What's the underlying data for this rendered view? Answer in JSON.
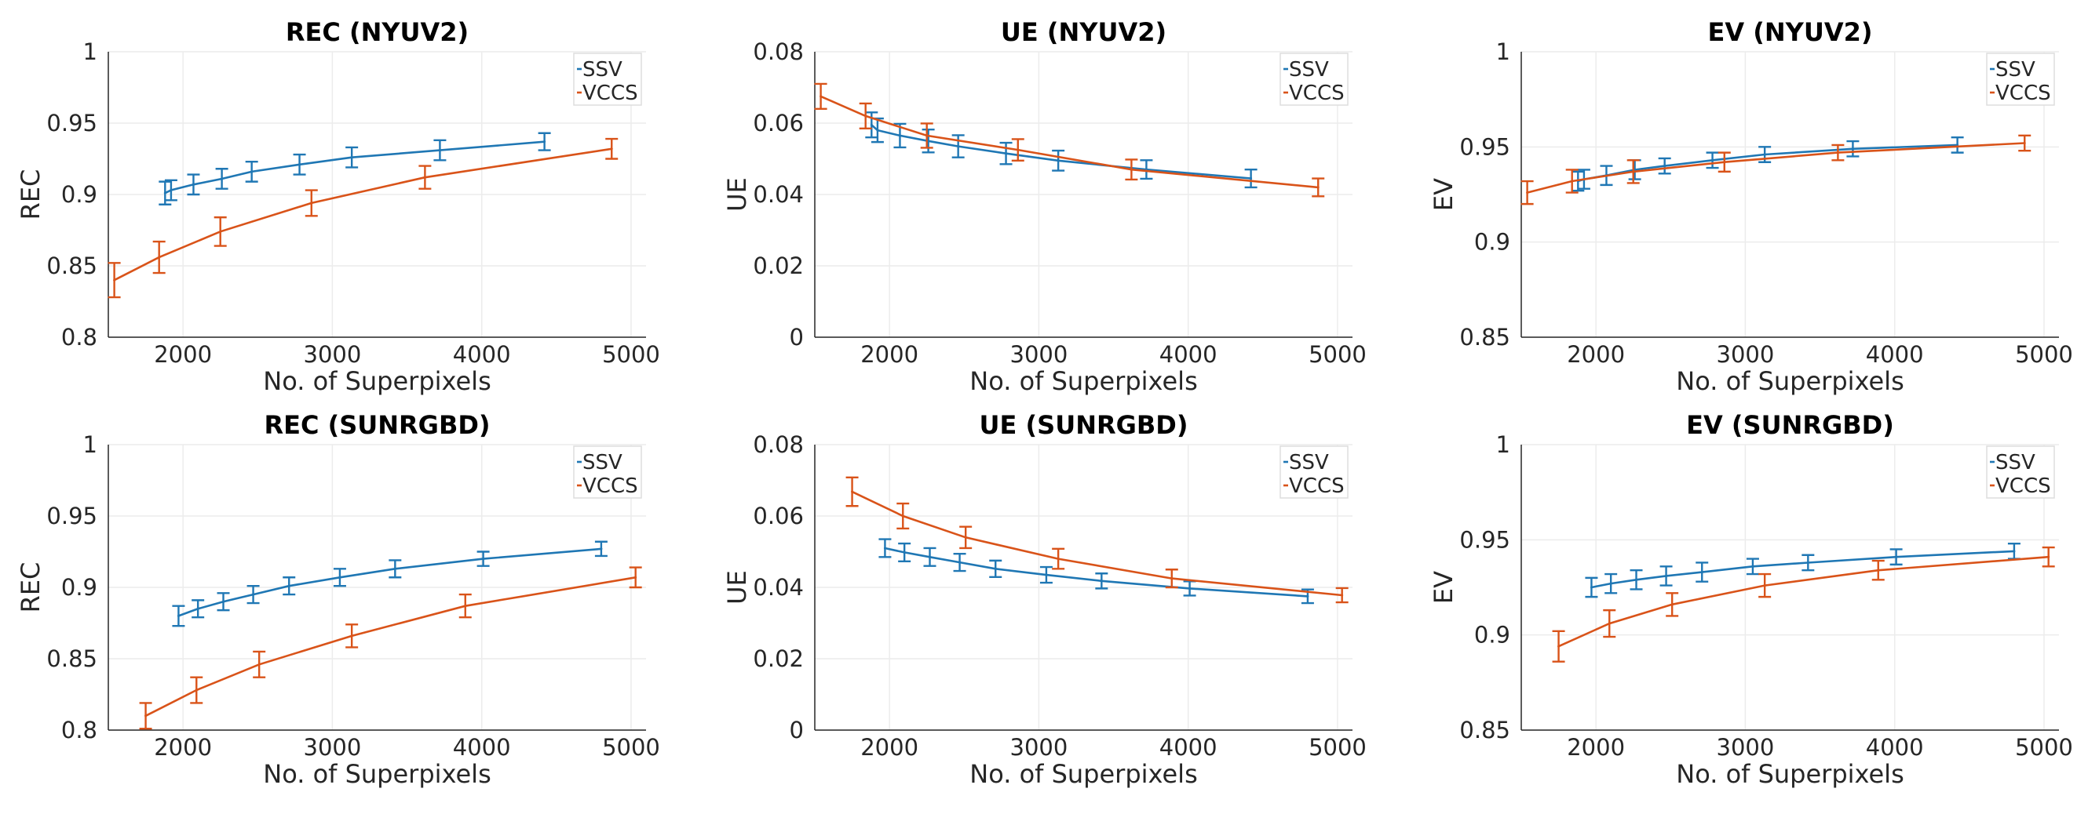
{
  "colors": {
    "SSV": "#1f77b4",
    "VCCS": "#d95319"
  },
  "chart_data": [
    {
      "type": "line",
      "title": "REC (NYUV2)",
      "xlabel": "No. of Superpixels",
      "ylabel": "REC",
      "xlim": [
        1500,
        5100
      ],
      "ylim": [
        0.8,
        1
      ],
      "xticks": [
        2000,
        3000,
        4000,
        5000
      ],
      "yticks": [
        0.8,
        0.85,
        0.9,
        0.95,
        1
      ],
      "ytick_labels": [
        "0.8",
        "0.85",
        "0.9",
        "0.95",
        "1"
      ],
      "legend": "top-right",
      "grid": true,
      "series": [
        {
          "name": "SSV",
          "color": "#1f77b4",
          "x": [
            1880,
            1920,
            2070,
            2260,
            2460,
            2780,
            3130,
            3720,
            4420
          ],
          "y": [
            0.901,
            0.903,
            0.907,
            0.911,
            0.916,
            0.921,
            0.926,
            0.931,
            0.937
          ],
          "err": [
            0.008,
            0.007,
            0.007,
            0.007,
            0.007,
            0.007,
            0.007,
            0.007,
            0.006
          ]
        },
        {
          "name": "VCCS",
          "color": "#d95319",
          "x": [
            1540,
            1840,
            2250,
            2860,
            3620,
            4870
          ],
          "y": [
            0.84,
            0.856,
            0.874,
            0.894,
            0.912,
            0.932
          ],
          "err": [
            0.012,
            0.011,
            0.01,
            0.009,
            0.008,
            0.007
          ]
        }
      ]
    },
    {
      "type": "line",
      "title": "UE (NYUV2)",
      "xlabel": "No. of Superpixels",
      "ylabel": "UE",
      "xlim": [
        1500,
        5100
      ],
      "ylim": [
        0,
        0.08
      ],
      "xticks": [
        2000,
        3000,
        4000,
        5000
      ],
      "yticks": [
        0,
        0.02,
        0.04,
        0.06,
        0.08
      ],
      "ytick_labels": [
        "0",
        "0.02",
        "0.04",
        "0.06",
        "0.08"
      ],
      "legend": "top-right",
      "grid": true,
      "series": [
        {
          "name": "SSV",
          "color": "#1f77b4",
          "x": [
            1880,
            1920,
            2070,
            2260,
            2460,
            2780,
            3130,
            3720,
            4420
          ],
          "y": [
            0.0595,
            0.058,
            0.0565,
            0.055,
            0.0535,
            0.0515,
            0.0495,
            0.047,
            0.0445
          ],
          "err": [
            0.0035,
            0.0033,
            0.0033,
            0.0032,
            0.0031,
            0.003,
            0.0028,
            0.0026,
            0.0025
          ]
        },
        {
          "name": "VCCS",
          "color": "#d95319",
          "x": [
            1540,
            1840,
            2250,
            2860,
            3620,
            4870
          ],
          "y": [
            0.0675,
            0.062,
            0.0565,
            0.0525,
            0.047,
            0.042
          ],
          "err": [
            0.0035,
            0.0035,
            0.0034,
            0.003,
            0.0028,
            0.0025
          ]
        }
      ]
    },
    {
      "type": "line",
      "title": "EV (NYUV2)",
      "xlabel": "No. of Superpixels",
      "ylabel": "EV",
      "xlim": [
        1500,
        5100
      ],
      "ylim": [
        0.85,
        1
      ],
      "xticks": [
        2000,
        3000,
        4000,
        5000
      ],
      "yticks": [
        0.85,
        0.9,
        0.95,
        1
      ],
      "ytick_labels": [
        "0.85",
        "0.9",
        "0.95",
        "1"
      ],
      "legend": "top-right",
      "grid": true,
      "series": [
        {
          "name": "SSV",
          "color": "#1f77b4",
          "x": [
            1880,
            1920,
            2070,
            2260,
            2460,
            2780,
            3130,
            3720,
            4420
          ],
          "y": [
            0.932,
            0.933,
            0.935,
            0.938,
            0.94,
            0.943,
            0.946,
            0.949,
            0.951
          ],
          "err": [
            0.005,
            0.005,
            0.005,
            0.005,
            0.004,
            0.004,
            0.004,
            0.004,
            0.004
          ]
        },
        {
          "name": "VCCS",
          "color": "#d95319",
          "x": [
            1540,
            1840,
            2250,
            2860,
            3620,
            4870
          ],
          "y": [
            0.926,
            0.932,
            0.937,
            0.942,
            0.947,
            0.952
          ],
          "err": [
            0.006,
            0.006,
            0.006,
            0.005,
            0.004,
            0.004
          ]
        }
      ]
    },
    {
      "type": "line",
      "title": "REC (SUNRGBD)",
      "xlabel": "No. of Superpixels",
      "ylabel": "REC",
      "xlim": [
        1500,
        5100
      ],
      "ylim": [
        0.8,
        1
      ],
      "xticks": [
        2000,
        3000,
        4000,
        5000
      ],
      "yticks": [
        0.8,
        0.85,
        0.9,
        0.95,
        1
      ],
      "ytick_labels": [
        "0.8",
        "0.85",
        "0.9",
        "0.95",
        "1"
      ],
      "legend": "top-right",
      "grid": true,
      "series": [
        {
          "name": "SSV",
          "color": "#1f77b4",
          "x": [
            1970,
            2100,
            2270,
            2470,
            2710,
            3050,
            3420,
            4010,
            4800
          ],
          "y": [
            0.88,
            0.885,
            0.89,
            0.895,
            0.901,
            0.907,
            0.913,
            0.92,
            0.927
          ],
          "err": [
            0.007,
            0.006,
            0.006,
            0.006,
            0.006,
            0.006,
            0.006,
            0.005,
            0.005
          ]
        },
        {
          "name": "VCCS",
          "color": "#d95319",
          "x": [
            1750,
            2090,
            2510,
            3130,
            3890,
            5030
          ],
          "y": [
            0.81,
            0.828,
            0.846,
            0.866,
            0.887,
            0.907
          ],
          "err": [
            0.009,
            0.009,
            0.009,
            0.008,
            0.008,
            0.007
          ]
        }
      ]
    },
    {
      "type": "line",
      "title": "UE (SUNRGBD)",
      "xlabel": "No. of Superpixels",
      "ylabel": "UE",
      "xlim": [
        1500,
        5100
      ],
      "ylim": [
        0,
        0.08
      ],
      "xticks": [
        2000,
        3000,
        4000,
        5000
      ],
      "yticks": [
        0,
        0.02,
        0.04,
        0.06,
        0.08
      ],
      "ytick_labels": [
        "0",
        "0.02",
        "0.04",
        "0.06",
        "0.08"
      ],
      "legend": "top-right",
      "grid": true,
      "series": [
        {
          "name": "SSV",
          "color": "#1f77b4",
          "x": [
            1970,
            2100,
            2270,
            2470,
            2710,
            3050,
            3420,
            4010,
            4800
          ],
          "y": [
            0.051,
            0.0498,
            0.0485,
            0.047,
            0.0452,
            0.0435,
            0.0418,
            0.0397,
            0.0375
          ],
          "err": [
            0.0025,
            0.0025,
            0.0025,
            0.0024,
            0.0023,
            0.0022,
            0.0021,
            0.002,
            0.0019
          ]
        },
        {
          "name": "VCCS",
          "color": "#d95319",
          "x": [
            1750,
            2090,
            2510,
            3130,
            3890,
            5030
          ],
          "y": [
            0.0668,
            0.06,
            0.054,
            0.048,
            0.0425,
            0.0378
          ],
          "err": [
            0.004,
            0.0035,
            0.003,
            0.0028,
            0.0025,
            0.002
          ]
        }
      ]
    },
    {
      "type": "line",
      "title": "EV (SUNRGBD)",
      "xlabel": "No. of Superpixels",
      "ylabel": "EV",
      "xlim": [
        1500,
        5100
      ],
      "ylim": [
        0.85,
        1
      ],
      "xticks": [
        2000,
        3000,
        4000,
        5000
      ],
      "yticks": [
        0.85,
        0.9,
        0.95,
        1
      ],
      "ytick_labels": [
        "0.85",
        "0.9",
        "0.95",
        "1"
      ],
      "legend": "top-right",
      "grid": true,
      "series": [
        {
          "name": "SSV",
          "color": "#1f77b4",
          "x": [
            1970,
            2100,
            2270,
            2470,
            2710,
            3050,
            3420,
            4010,
            4800
          ],
          "y": [
            0.925,
            0.927,
            0.929,
            0.931,
            0.933,
            0.936,
            0.938,
            0.941,
            0.944
          ],
          "err": [
            0.005,
            0.005,
            0.005,
            0.005,
            0.005,
            0.004,
            0.004,
            0.004,
            0.004
          ]
        },
        {
          "name": "VCCS",
          "color": "#d95319",
          "x": [
            1750,
            2090,
            2510,
            3130,
            3890,
            5030
          ],
          "y": [
            0.894,
            0.906,
            0.916,
            0.926,
            0.934,
            0.941
          ],
          "err": [
            0.008,
            0.007,
            0.006,
            0.006,
            0.005,
            0.005
          ]
        }
      ]
    }
  ]
}
